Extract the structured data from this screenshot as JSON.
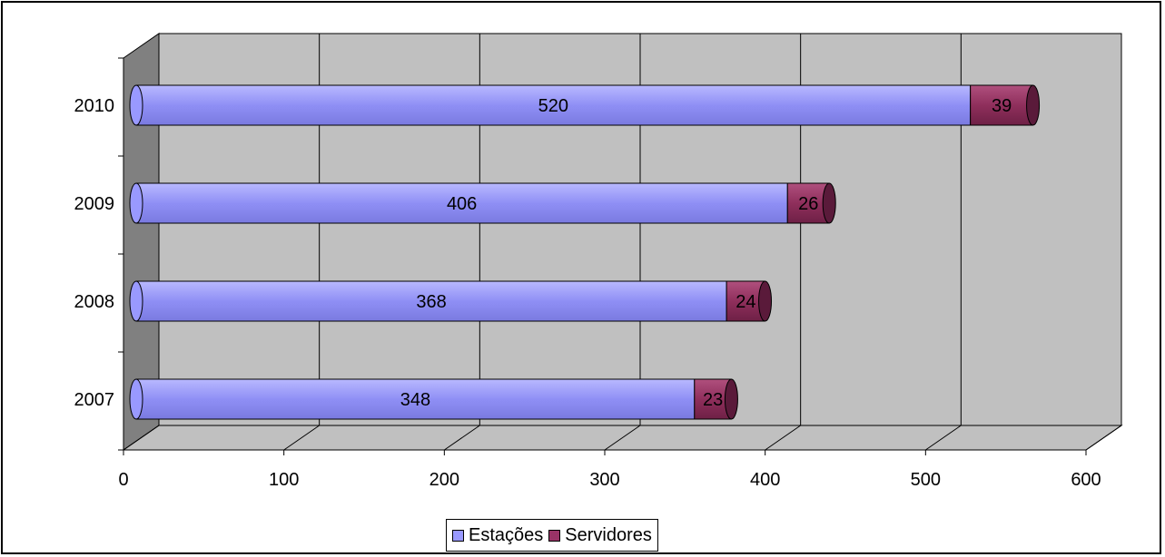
{
  "chart_data": {
    "type": "bar",
    "orientation": "horizontal",
    "stacked": true,
    "three_d": true,
    "categories": [
      "2007",
      "2008",
      "2009",
      "2010"
    ],
    "series": [
      {
        "name": "Estações",
        "values": [
          348,
          368,
          406,
          520
        ],
        "color": "#9999ff"
      },
      {
        "name": "Servidores",
        "values": [
          23,
          24,
          26,
          39
        ],
        "color": "#993366"
      }
    ],
    "xlim": [
      0,
      600
    ],
    "x_ticks": [
      "0",
      "100",
      "200",
      "300",
      "400",
      "500",
      "600"
    ],
    "grid": true,
    "legend_position": "bottom",
    "wall_color": "#c0c0c0"
  }
}
